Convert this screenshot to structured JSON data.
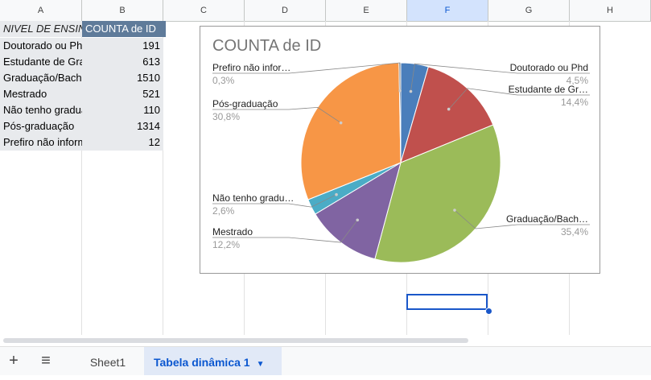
{
  "columns": [
    "A",
    "B",
    "C",
    "D",
    "E",
    "F",
    "G",
    "H"
  ],
  "table": {
    "header": {
      "label": "NIVEL DE ENSINO",
      "value": "COUNTA de ID"
    },
    "rows": [
      {
        "label": "Doutorado ou Phd",
        "value": "191"
      },
      {
        "label": "Estudante de Graduação",
        "value": "613"
      },
      {
        "label": "Graduação/Bacharelado",
        "value": "1510"
      },
      {
        "label": "Mestrado",
        "value": "521"
      },
      {
        "label": "Não tenho graduação",
        "value": "110"
      },
      {
        "label": "Pós-graduação",
        "value": "1314"
      },
      {
        "label": "Prefiro não informar",
        "value": "12"
      }
    ]
  },
  "chart_data": {
    "type": "pie",
    "title": "COUNTA de ID",
    "slices": [
      {
        "label": "Doutorado ou Phd",
        "display_label": "Doutorado ou Phd",
        "value": 191,
        "pct": "4,5%",
        "color": "#4a7ebb"
      },
      {
        "label": "Estudante de Graduação",
        "display_label": "Estudante de Gr…",
        "value": 613,
        "pct": "14,4%",
        "color": "#c0504d"
      },
      {
        "label": "Graduação/Bacharelado",
        "display_label": "Graduação/Bach…",
        "value": 1510,
        "pct": "35,4%",
        "color": "#9bbb59"
      },
      {
        "label": "Mestrado",
        "display_label": "Mestrado",
        "value": 521,
        "pct": "12,2%",
        "color": "#8064a2"
      },
      {
        "label": "Não tenho graduação",
        "display_label": "Não tenho gradu…",
        "value": 110,
        "pct": "2,6%",
        "color": "#4bacc6"
      },
      {
        "label": "Pós-graduação",
        "display_label": "Pós-graduação",
        "value": 1314,
        "pct": "30,8%",
        "color": "#f79646"
      },
      {
        "label": "Prefiro não informar",
        "display_label": "Prefiro não infor…",
        "value": 12,
        "pct": "0,3%",
        "color": "#2c4d75"
      }
    ]
  },
  "tabs": [
    {
      "label": "Sheet1",
      "active": false
    },
    {
      "label": "Tabela dinâmica 1",
      "active": true
    }
  ],
  "icons": {
    "add": "plus-icon",
    "menu": "hamburger-icon",
    "dropdown": "caret-down-icon"
  }
}
